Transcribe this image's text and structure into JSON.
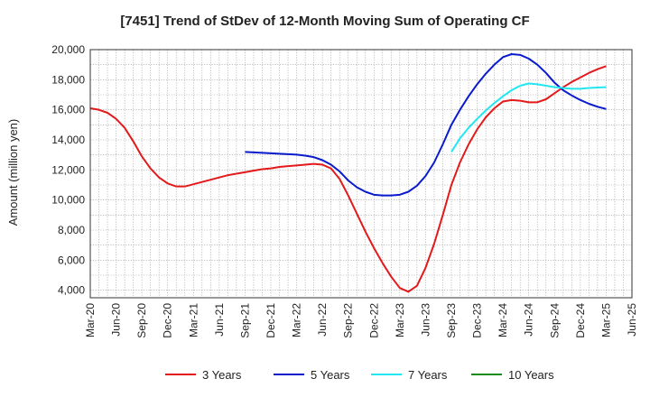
{
  "chart_data": {
    "type": "line",
    "title": "[7451]  Trend of StDev of 12-Month Moving Sum of Operating CF",
    "ylabel": "Amount (million yen)",
    "xlabel": "",
    "ylim": [
      3500,
      20000
    ],
    "yticks": [
      4000,
      6000,
      8000,
      10000,
      12000,
      14000,
      16000,
      18000,
      20000
    ],
    "ytick_labels": [
      "4,000",
      "6,000",
      "8,000",
      "10,000",
      "12,000",
      "14,000",
      "16,000",
      "18,000",
      "20,000"
    ],
    "xticks": [
      "Mar-20",
      "Jun-20",
      "Sep-20",
      "Dec-20",
      "Mar-21",
      "Jun-21",
      "Sep-21",
      "Dec-21",
      "Mar-22",
      "Jun-22",
      "Sep-22",
      "Dec-22",
      "Mar-23",
      "Jun-23",
      "Sep-23",
      "Dec-23",
      "Mar-24",
      "Jun-24",
      "Sep-24",
      "Dec-24",
      "Mar-25",
      "Jun-25"
    ],
    "grid": true,
    "legend_position": "bottom",
    "series": [
      {
        "name": "3 Years",
        "color": "#e31a1c",
        "x": [
          "2020-03",
          "2020-04",
          "2020-05",
          "2020-06",
          "2020-07",
          "2020-08",
          "2020-09",
          "2020-10",
          "2020-11",
          "2020-12",
          "2021-01",
          "2021-02",
          "2021-03",
          "2021-04",
          "2021-05",
          "2021-06",
          "2021-07",
          "2021-08",
          "2021-09",
          "2021-10",
          "2021-11",
          "2021-12",
          "2022-01",
          "2022-02",
          "2022-03",
          "2022-04",
          "2022-05",
          "2022-06",
          "2022-07",
          "2022-08",
          "2022-09",
          "2022-10",
          "2022-11",
          "2022-12",
          "2023-01",
          "2023-02",
          "2023-03",
          "2023-04",
          "2023-05",
          "2023-06",
          "2023-07",
          "2023-08",
          "2023-09",
          "2023-10",
          "2023-11",
          "2023-12",
          "2024-01",
          "2024-02",
          "2024-03",
          "2024-04",
          "2024-05",
          "2024-06",
          "2024-07",
          "2024-08",
          "2024-09",
          "2024-10",
          "2024-11",
          "2024-12",
          "2025-01",
          "2025-02",
          "2025-03"
        ],
        "values": [
          16100,
          16000,
          15800,
          15400,
          14800,
          13900,
          12900,
          12100,
          11500,
          11100,
          10900,
          10900,
          11050,
          11200,
          11350,
          11500,
          11650,
          11750,
          11850,
          11950,
          12050,
          12100,
          12200,
          12250,
          12300,
          12350,
          12400,
          12350,
          12100,
          11400,
          10300,
          9100,
          7900,
          6800,
          5800,
          4900,
          4150,
          3900,
          4300,
          5500,
          7100,
          9000,
          11000,
          12500,
          13700,
          14700,
          15500,
          16100,
          16550,
          16650,
          16600,
          16500,
          16500,
          16700,
          17100,
          17500,
          17850,
          18150,
          18450,
          18700,
          18900
        ]
      },
      {
        "name": "5 Years",
        "color": "#0a1bcc",
        "x": [
          "2021-09",
          "2021-10",
          "2021-11",
          "2021-12",
          "2022-01",
          "2022-02",
          "2022-03",
          "2022-04",
          "2022-05",
          "2022-06",
          "2022-07",
          "2022-08",
          "2022-09",
          "2022-10",
          "2022-11",
          "2022-12",
          "2023-01",
          "2023-02",
          "2023-03",
          "2023-04",
          "2023-05",
          "2023-06",
          "2023-07",
          "2023-08",
          "2023-09",
          "2023-10",
          "2023-11",
          "2023-12",
          "2024-01",
          "2024-02",
          "2024-03",
          "2024-04",
          "2024-05",
          "2024-06",
          "2024-07",
          "2024-08",
          "2024-09",
          "2024-10",
          "2024-11",
          "2024-12",
          "2025-01",
          "2025-02",
          "2025-03"
        ],
        "values": [
          13200,
          13170,
          13140,
          13110,
          13080,
          13050,
          13020,
          12950,
          12850,
          12650,
          12350,
          11900,
          11300,
          10850,
          10550,
          10350,
          10300,
          10300,
          10350,
          10550,
          10950,
          11600,
          12500,
          13700,
          15000,
          16000,
          16900,
          17700,
          18400,
          19000,
          19500,
          19700,
          19650,
          19400,
          19000,
          18450,
          17800,
          17300,
          16950,
          16650,
          16400,
          16200,
          16050
        ]
      },
      {
        "name": "7 Years",
        "color": "#22e6f0",
        "x": [
          "2023-09",
          "2023-10",
          "2023-11",
          "2023-12",
          "2024-01",
          "2024-02",
          "2024-03",
          "2024-04",
          "2024-05",
          "2024-06",
          "2024-07",
          "2024-08",
          "2024-09",
          "2024-10",
          "2024-11",
          "2024-12",
          "2025-01",
          "2025-02",
          "2025-03"
        ],
        "values": [
          13200,
          14100,
          14800,
          15400,
          15950,
          16450,
          16900,
          17300,
          17600,
          17750,
          17700,
          17600,
          17500,
          17450,
          17400,
          17400,
          17450,
          17480,
          17500
        ]
      },
      {
        "name": "10 Years",
        "color": "#1a8a1a",
        "x": [],
        "values": []
      }
    ]
  }
}
